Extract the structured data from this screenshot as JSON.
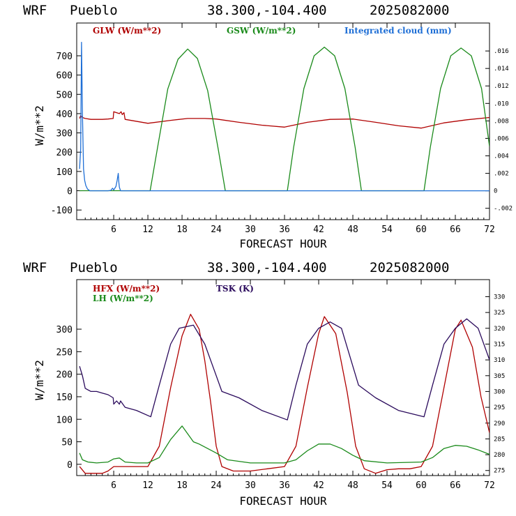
{
  "chart_data": [
    {
      "type": "line",
      "header": {
        "model": "WRF",
        "station": "Pueblo",
        "coords": "38.300,-104.400",
        "date": "2025082000"
      },
      "xlabel": "FORECAST HOUR",
      "ylabel": "W/m**2",
      "xlim": [
        -0.5,
        72
      ],
      "ylim": [
        -150,
        870
      ],
      "xticks": [
        6,
        12,
        18,
        24,
        30,
        36,
        42,
        48,
        54,
        60,
        66,
        72
      ],
      "yticks": [
        -100,
        0,
        100,
        200,
        300,
        400,
        500,
        600,
        700
      ],
      "y2lim": [
        -0.0033,
        0.0192
      ],
      "y2ticks": [
        {
          "v": -0.002,
          "label": "-.002"
        },
        {
          "v": 0,
          "label": "0"
        },
        {
          "v": 0.002,
          "label": ".002"
        },
        {
          "v": 0.004,
          "label": ".004"
        },
        {
          "v": 0.006,
          "label": ".006"
        },
        {
          "v": 0.008,
          "label": ".008"
        },
        {
          "v": 0.01,
          "label": ".010"
        },
        {
          "v": 0.012,
          "label": ".012"
        },
        {
          "v": 0.014,
          "label": ".014"
        },
        {
          "v": 0.016,
          "label": ".016"
        }
      ],
      "series": [
        {
          "name": "GLW (W/m**2)",
          "color": "#b00000",
          "axis": "left",
          "x": [
            0,
            0.2,
            0.5,
            1,
            2,
            3,
            4,
            5,
            5.9,
            6,
            6.5,
            7,
            7.3,
            7.5,
            7.8,
            8,
            12,
            16,
            19,
            22,
            24,
            28,
            32,
            36,
            40,
            44,
            48,
            52,
            56,
            60,
            64,
            68,
            72
          ],
          "y": [
            375,
            390,
            380,
            375,
            370,
            370,
            370,
            372,
            375,
            410,
            405,
            400,
            410,
            395,
            405,
            370,
            350,
            365,
            375,
            375,
            372,
            355,
            340,
            330,
            355,
            370,
            372,
            355,
            337,
            325,
            352,
            368,
            380
          ]
        },
        {
          "name": "GSW (W/m**2)",
          "color": "#1a8a1a",
          "axis": "left",
          "x": [
            0,
            12.4,
            13.7,
            15.5,
            17.3,
            19.0,
            20.7,
            22.5,
            24.3,
            25.6,
            36.5,
            37.6,
            39.4,
            41.2,
            43.0,
            44.8,
            46.6,
            48.4,
            49.5,
            60.5,
            61.6,
            63.4,
            65.2,
            67.0,
            68.8,
            70.6,
            72
          ],
          "y": [
            0,
            0,
            225,
            528,
            682,
            735,
            686,
            520,
            225,
            0,
            0,
            225,
            530,
            700,
            745,
            700,
            530,
            225,
            0,
            0,
            225,
            530,
            700,
            740,
            700,
            530,
            230
          ]
        },
        {
          "name": "Integrated cloud (mm)",
          "color": "#1f6fd6",
          "axis": "right",
          "x": [
            0,
            0.2,
            0.35,
            0.5,
            0.7,
            0.9,
            1.1,
            1.4,
            1.8,
            2,
            5,
            5.5,
            5.8,
            6.0,
            6.2,
            6.4,
            6.6,
            6.7,
            6.8,
            6.9,
            7.0,
            7.2,
            72
          ],
          "y": [
            0.0025,
            0.0048,
            0.017,
            0.009,
            0.0025,
            0.0012,
            0.0006,
            0.0002,
            0,
            0,
            0,
            5e-05,
            0.0003,
            0.0001,
            0.0003,
            0.0005,
            0.0012,
            0.0016,
            0.002,
            0.001,
            0.0004,
            0,
            0
          ]
        }
      ]
    },
    {
      "type": "line",
      "header": {
        "model": "WRF",
        "station": "Pueblo",
        "coords": "38.300,-104.400",
        "date": "2025082000"
      },
      "xlabel": "FORECAST HOUR",
      "ylabel": "W/m**2",
      "xlim": [
        -0.5,
        72
      ],
      "ylim": [
        -25,
        410
      ],
      "xticks": [
        6,
        12,
        18,
        24,
        30,
        36,
        42,
        48,
        54,
        60,
        66,
        72
      ],
      "yticks": [
        0,
        50,
        100,
        150,
        200,
        250,
        300
      ],
      "y2lim": [
        273.4,
        335.4
      ],
      "y2ticks": [
        {
          "v": 275,
          "label": "275"
        },
        {
          "v": 280,
          "label": "280"
        },
        {
          "v": 285,
          "label": "285"
        },
        {
          "v": 290,
          "label": "290"
        },
        {
          "v": 295,
          "label": "295"
        },
        {
          "v": 300,
          "label": "300"
        },
        {
          "v": 305,
          "label": "305"
        },
        {
          "v": 310,
          "label": "310"
        },
        {
          "v": 315,
          "label": "315"
        },
        {
          "v": 320,
          "label": "320"
        },
        {
          "v": 325,
          "label": "325"
        },
        {
          "v": 330,
          "label": "330"
        }
      ],
      "series": [
        {
          "name": "HFX (W/m**2)",
          "color": "#b00000",
          "axis": "left",
          "x": [
            0,
            1,
            2,
            3,
            4,
            5,
            6,
            7,
            8,
            10,
            12,
            14,
            16,
            18,
            19.5,
            21,
            22,
            23,
            24,
            25,
            27,
            30,
            33,
            36,
            38,
            40,
            42,
            43,
            45,
            47,
            48.5,
            50,
            52,
            54,
            56,
            58,
            60,
            62,
            64,
            66,
            67,
            69,
            70.5,
            72
          ],
          "y": [
            -5,
            -20,
            -20,
            -20,
            -20,
            -15,
            -5,
            -5,
            -5,
            -5,
            -5,
            40,
            170,
            285,
            333,
            300,
            230,
            140,
            40,
            -5,
            -15,
            -15,
            -10,
            -5,
            40,
            170,
            290,
            328,
            290,
            160,
            40,
            -10,
            -20,
            -12,
            -10,
            -10,
            -5,
            40,
            170,
            300,
            320,
            260,
            150,
            70
          ]
        },
        {
          "name": "LH (W/m**2)",
          "color": "#1a8a1a",
          "axis": "left",
          "x": [
            0,
            0.5,
            1.5,
            3,
            5,
            6,
            7,
            8,
            10,
            12,
            14,
            16,
            18,
            20,
            21,
            24,
            26,
            30,
            36,
            38,
            40,
            42,
            44,
            46,
            48,
            50,
            54,
            60,
            62,
            64,
            66,
            68,
            70,
            72
          ],
          "y": [
            25,
            10,
            5,
            3,
            5,
            12,
            14,
            5,
            3,
            3,
            15,
            55,
            85,
            50,
            45,
            25,
            10,
            3,
            3,
            10,
            30,
            45,
            45,
            35,
            20,
            8,
            3,
            5,
            15,
            35,
            42,
            40,
            32,
            22
          ]
        },
        {
          "name": "TSK (K)",
          "color": "#2a0a5c",
          "axis": "right",
          "x": [
            0,
            0.5,
            1,
            2,
            3,
            4,
            5,
            5.9,
            6,
            6.5,
            7,
            7.2,
            8,
            10,
            12.5,
            14,
            16,
            17.5,
            20,
            22,
            24,
            25,
            28,
            32,
            36.5,
            38,
            40,
            42,
            44,
            46,
            48.5,
            49,
            52,
            56,
            60.5,
            62,
            64,
            66,
            68,
            70,
            72
          ],
          "y": [
            308,
            305,
            301,
            300,
            300,
            299.5,
            299,
            298,
            296,
            297,
            296,
            297,
            295,
            294,
            292,
            302,
            315,
            320,
            321,
            315,
            305,
            300,
            298,
            294,
            291,
            302,
            315,
            320,
            322,
            320,
            305,
            302,
            298,
            294,
            292,
            302,
            315,
            320,
            323,
            320,
            310
          ]
        }
      ]
    }
  ]
}
